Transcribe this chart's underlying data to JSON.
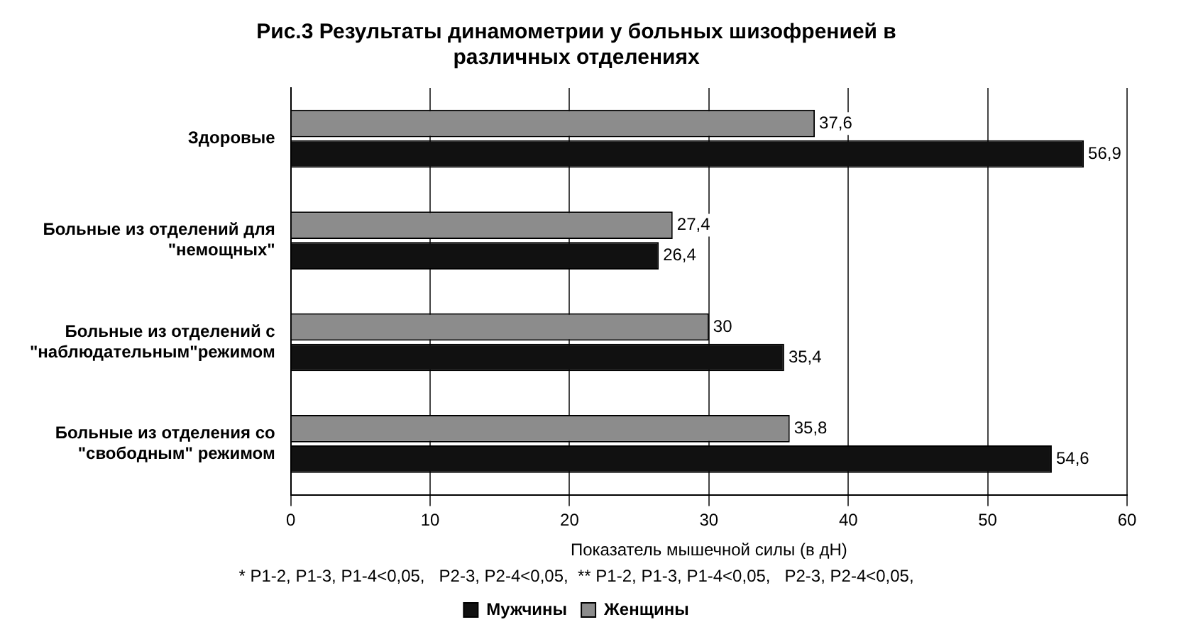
{
  "chart_data": {
    "type": "bar",
    "orientation": "horizontal",
    "title": "Рис.3 Результаты динамометрии у больных шизофренией в различных отделениях",
    "xlabel": "Показатель мышечной силы (в дН)",
    "categories": [
      "Здоровые",
      "Больные из отделений для \"немощных\"",
      "Больные из отделений с \"наблюдательным\"режимом",
      "Больные из отделения со \"свободным\" режимом"
    ],
    "series": [
      {
        "name": "Женщины",
        "color": "#8c8c8c",
        "values": [
          37.6,
          27.4,
          30,
          35.8
        ],
        "value_labels": [
          "37,6",
          "27,4",
          "30",
          "35,8"
        ]
      },
      {
        "name": "Мужчины",
        "color": "#111111",
        "values": [
          56.9,
          26.4,
          35.4,
          54.6
        ],
        "value_labels": [
          "56,9",
          "26,4",
          "35,4",
          "54,6"
        ]
      }
    ],
    "xlim": [
      0,
      60
    ],
    "xticks": [
      0,
      10,
      20,
      30,
      40,
      50,
      60
    ],
    "grid": "x",
    "legend": "bottom",
    "annotations": [
      "* P1-2, P1-3, P1-4<0,05,   P2-3, P2-4<0,05,  ** P1-2, P1-3, P1-4<0,05,   P2-3, P2-4<0,05,"
    ]
  }
}
